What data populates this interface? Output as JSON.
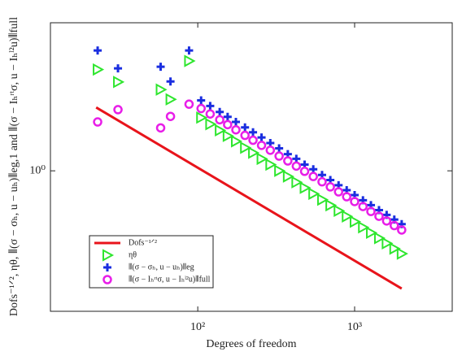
{
  "chart_data": {
    "type": "scatter",
    "xlabel": "Degrees of freedom",
    "ylabel": "Dofs⁻¹ᐟ², ηθ, ⦀(σ − σₕ, u − uₕ)⦀eg,1 and ⦀(σ − Iₕʳᵗσ, u − Iₕˡ²u)⦀full",
    "xscale": "log",
    "yscale": "log",
    "xlim": [
      11.5,
      4190
    ],
    "ylim": [
      0.176,
      6.24
    ],
    "xticks": [
      {
        "value": 100,
        "label": "10²"
      },
      {
        "value": 1000,
        "label": "10³"
      }
    ],
    "yticks": [
      {
        "value": 1,
        "label": "10⁰"
      }
    ],
    "legend": "lower left",
    "x": [
      23,
      31,
      58,
      67,
      88,
      105,
      120,
      138,
      155,
      175,
      200,
      225,
      255,
      290,
      330,
      375,
      425,
      480,
      545,
      620,
      700,
      790,
      890,
      1000,
      1130,
      1270,
      1430,
      1600,
      1790,
      1995
    ],
    "series": [
      {
        "name": "Dofs⁻¹ᐟ²",
        "color": "#e8141b",
        "marker": "line",
        "x": [
          22.5,
          1995
        ],
        "values": [
          2.19,
          0.233
        ]
      },
      {
        "name": "ηθ",
        "color": "#2ee62e",
        "marker": "triangle",
        "values": [
          3.5,
          3.0,
          2.73,
          2.42,
          3.89,
          1.93,
          1.78,
          1.65,
          1.54,
          1.44,
          1.33,
          1.25,
          1.16,
          1.08,
          1.0,
          0.932,
          0.868,
          0.81,
          0.753,
          0.7,
          0.653,
          0.61,
          0.569,
          0.533,
          0.497,
          0.465,
          0.435,
          0.408,
          0.382,
          0.359
        ]
      },
      {
        "name": "⦀(σ − σₕ, u − uₕ)⦀eg",
        "color": "#1a2ee0",
        "marker": "plus",
        "values": [
          4.43,
          3.55,
          3.62,
          3.02,
          4.43,
          2.39,
          2.23,
          2.07,
          1.95,
          1.83,
          1.71,
          1.61,
          1.51,
          1.41,
          1.32,
          1.23,
          1.16,
          1.08,
          1.02,
          0.95,
          0.892,
          0.837,
          0.787,
          0.741,
          0.695,
          0.654,
          0.615,
          0.58,
          0.547,
          0.517
        ]
      },
      {
        "name": "⦀(σ − Iₕʳᵗσ, u − Iₕˡ²u)⦀full",
        "color": "#e81ee8",
        "marker": "circle",
        "values": [
          1.83,
          2.13,
          1.7,
          1.96,
          2.28,
          2.16,
          2.02,
          1.88,
          1.77,
          1.66,
          1.55,
          1.46,
          1.37,
          1.29,
          1.2,
          1.13,
          1.06,
          0.994,
          0.932,
          0.873,
          0.82,
          0.771,
          0.726,
          0.684,
          0.643,
          0.605,
          0.57,
          0.538,
          0.508,
          0.481
        ]
      }
    ]
  }
}
